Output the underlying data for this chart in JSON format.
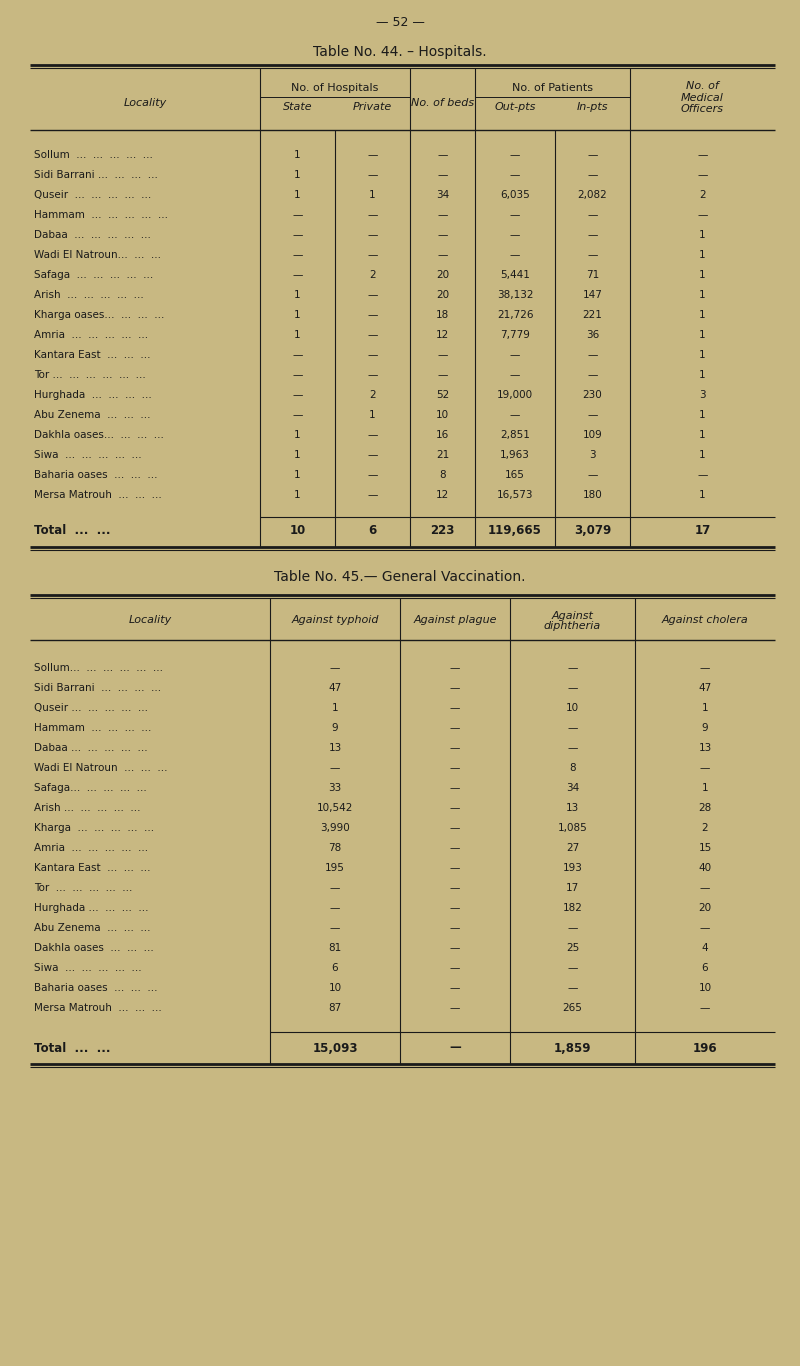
{
  "bg_color": "#c8b882",
  "page_number": "— 52 —",
  "table1_title": "Table No. 44. – Hospitals.",
  "table1_rows": [
    [
      "Sollum  ...  ...  ...  ...  ...",
      "1",
      "—",
      "—",
      "—",
      "—",
      "—"
    ],
    [
      "Sidi Barrani ...  ...  ...  ...",
      "1",
      "—",
      "—",
      "—",
      "—",
      "—"
    ],
    [
      "Quseir  ...  ...  ...  ...  ...",
      "1",
      "1",
      "34",
      "6,035",
      "2,082",
      "2"
    ],
    [
      "Hammam  ...  ...  ...  ...  ...",
      "—",
      "—",
      "—",
      "—",
      "—",
      "—"
    ],
    [
      "Dabaa  ...  ...  ...  ...  ...",
      "—",
      "—",
      "—",
      "—",
      "—",
      "1"
    ],
    [
      "Wadi El Natroun...  ...  ...",
      "—",
      "—",
      "—",
      "—",
      "—",
      "1"
    ],
    [
      "Safaga  ...  ...  ...  ...  ...",
      "—",
      "2",
      "20",
      "5,441",
      "71",
      "1"
    ],
    [
      "Arish  ...  ...  ...  ...  ...",
      "1",
      "—",
      "20",
      "38,132",
      "147",
      "1"
    ],
    [
      "Kharga oases...  ...  ...  ...",
      "1",
      "—",
      "18",
      "21,726",
      "221",
      "1"
    ],
    [
      "Amria  ...  ...  ...  ...  ...",
      "1",
      "—",
      "12",
      "7,779",
      "36",
      "1"
    ],
    [
      "Kantara East  ...  ...  ...",
      "—",
      "—",
      "—",
      "—",
      "—",
      "1"
    ],
    [
      "Tor ...  ...  ...  ...  ...  ...",
      "—",
      "—",
      "—",
      "—",
      "—",
      "1"
    ],
    [
      "Hurghada  ...  ...  ...  ...",
      "—",
      "2",
      "52",
      "19,000",
      "230",
      "3"
    ],
    [
      "Abu Zenema  ...  ...  ...",
      "—",
      "1",
      "10",
      "—",
      "—",
      "1"
    ],
    [
      "Dakhla oases...  ...  ...  ...",
      "1",
      "—",
      "16",
      "2,851",
      "109",
      "1"
    ],
    [
      "Siwa  ...  ...  ...  ...  ...",
      "1",
      "—",
      "21",
      "1,963",
      "3",
      "1"
    ],
    [
      "Baharia oases  ...  ...  ...",
      "1",
      "—",
      "8",
      "165",
      "—",
      "—"
    ],
    [
      "Mersa Matrouh  ...  ...  ...",
      "1",
      "—",
      "12",
      "16,573",
      "180",
      "1"
    ]
  ],
  "table1_total": [
    "Total  ...  ...",
    "10",
    "6",
    "223",
    "119,665",
    "3,079",
    "17"
  ],
  "table2_title": "Table No. 45.— General Vaccination.",
  "table2_rows": [
    [
      "Sollum...  ...  ...  ...  ...  ...",
      "—",
      "—",
      "—",
      "—"
    ],
    [
      "Sidi Barrani  ...  ...  ...  ...",
      "47",
      "—",
      "—",
      "47"
    ],
    [
      "Quseir ...  ...  ...  ...  ...",
      "1",
      "—",
      "10",
      "1"
    ],
    [
      "Hammam  ...  ...  ...  ...",
      "9",
      "—",
      "—",
      "9"
    ],
    [
      "Dabaa ...  ...  ...  ...  ...",
      "13",
      "—",
      "—",
      "13"
    ],
    [
      "Wadi El Natroun  ...  ...  ...",
      "—",
      "—",
      "8",
      "—"
    ],
    [
      "Safaga...  ...  ...  ...  ...",
      "33",
      "—",
      "34",
      "1"
    ],
    [
      "Arish ...  ...  ...  ...  ...",
      "10,542",
      "—",
      "13",
      "28"
    ],
    [
      "Kharga  ...  ...  ...  ...  ...",
      "3,990",
      "—",
      "1,085",
      "2"
    ],
    [
      "Amria  ...  ...  ...  ...  ...",
      "78",
      "—",
      "27",
      "15"
    ],
    [
      "Kantara East  ...  ...  ...",
      "195",
      "—",
      "193",
      "40"
    ],
    [
      "Tor  ...  ...  ...  ...  ...",
      "—",
      "—",
      "17",
      "—"
    ],
    [
      "Hurghada ...  ...  ...  ...",
      "—",
      "—",
      "182",
      "20"
    ],
    [
      "Abu Zenema  ...  ...  ...",
      "—",
      "—",
      "—",
      "—"
    ],
    [
      "Dakhla oases  ...  ...  ...",
      "81",
      "—",
      "25",
      "4"
    ],
    [
      "Siwa  ...  ...  ...  ...  ...",
      "6",
      "—",
      "—",
      "6"
    ],
    [
      "Baharia oases  ...  ...  ...",
      "10",
      "—",
      "—",
      "10"
    ],
    [
      "Mersa Matrouh  ...  ...  ...",
      "87",
      "—",
      "265",
      "—"
    ]
  ],
  "table2_total": [
    "Total  ...  ...",
    "15,093",
    "—",
    "1,859",
    "196"
  ]
}
